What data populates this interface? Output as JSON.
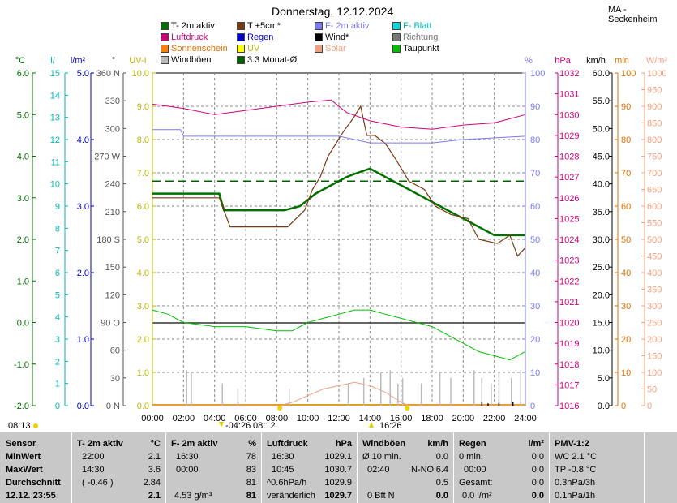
{
  "header": {
    "title": "Donnerstag, 12.12.2024",
    "location": "MA - Seckenheim"
  },
  "legend": [
    {
      "label": "T- 2m aktiv",
      "color": "#007000"
    },
    {
      "label": "T +5cm*",
      "color": "#7a3a10"
    },
    {
      "label": "F- 2m aktiv",
      "color": "#7a7aee"
    },
    {
      "label": "F- Blatt",
      "color": "#00dcdc"
    },
    {
      "label": "Luftdruck",
      "color": "#d0007a"
    },
    {
      "label": "Regen",
      "color": "#0000d0"
    },
    {
      "label": "Wind*",
      "color": "#000000"
    },
    {
      "label": "Richtung",
      "color": "#777777"
    },
    {
      "label": "Sonnenschein",
      "color": "#ff8000"
    },
    {
      "label": "UV",
      "color": "#ffff00"
    },
    {
      "label": "Solar",
      "color": "#f0a080"
    },
    {
      "label": "Taupunkt",
      "color": "#00c000"
    },
    {
      "label": "Windböen",
      "color": "#bbbbbb"
    },
    {
      "label": "3.3 Monat-Ø",
      "color": "#006000"
    }
  ],
  "axes": {
    "titles": {
      "t": "°C",
      "rain_rate": "l/",
      "rain": "l/m²",
      "dir": "°",
      "uv": "UV-I",
      "hum": "%",
      "press": "hPa",
      "wind": "km/h",
      "sun": "min",
      "solar": "W/m²"
    },
    "t": [
      "6.0",
      "5.0",
      "4.0",
      "3.0",
      "2.0",
      "1.0",
      "0.0",
      "-1.0",
      "-2.0"
    ],
    "rain_rate": [
      "15",
      "14",
      "13",
      "12",
      "11",
      "10",
      "9",
      "8",
      "7",
      "6",
      "5",
      "4",
      "3",
      "2",
      "1",
      "0"
    ],
    "rain": [
      "5.0",
      "4.0",
      "3.0",
      "2.0",
      "1.0",
      "0.0"
    ],
    "dir": [
      "360 N",
      "330",
      "300",
      "270 W",
      "240",
      "210",
      "180 S",
      "150",
      "120",
      "90 O",
      "60",
      "30",
      "0 N"
    ],
    "uv": [
      "10.0",
      "9.0",
      "8.0",
      "7.0",
      "6.0",
      "5.0",
      "4.0",
      "3.0",
      "2.0",
      "1.0",
      "0.0"
    ],
    "hum": [
      "100",
      "90",
      "80",
      "70",
      "60",
      "50",
      "40",
      "30",
      "20",
      "10",
      "0"
    ],
    "press": [
      "1032",
      "1031",
      "1030",
      "1029",
      "1028",
      "1027",
      "1026",
      "1025",
      "1024",
      "1023",
      "1022",
      "1021",
      "1020",
      "1019",
      "1018",
      "1017",
      "1016"
    ],
    "wind": [
      "60.0",
      "55.0",
      "50.0",
      "45.0",
      "40.0",
      "35.0",
      "30.0",
      "25.0",
      "20.0",
      "15.0",
      "10.0",
      "5.0",
      "0.0"
    ],
    "sun": [
      "100",
      "90",
      "80",
      "70",
      "60",
      "50",
      "40",
      "30",
      "20",
      "10",
      "0"
    ],
    "solar": [
      "1000",
      "950",
      "900",
      "850",
      "800",
      "750",
      "700",
      "650",
      "600",
      "550",
      "500",
      "450",
      "400",
      "350",
      "300",
      "250",
      "200",
      "150",
      "100",
      "50",
      "0"
    ],
    "time": [
      "00:00",
      "02:00",
      "04:00",
      "06:00",
      "08:00",
      "10:00",
      "12:00",
      "14:00",
      "16:00",
      "18:00",
      "20:00",
      "22:00",
      "24:00"
    ]
  },
  "below_axis": {
    "sunrise": "08:13",
    "moonset": "-04:26",
    "moonrise": "08:12",
    "sunset": "16:26"
  },
  "chart_data": {
    "type": "line",
    "x_unit": "hour",
    "xlim": [
      0,
      24
    ],
    "series": [
      {
        "name": "T- 2m aktiv",
        "axis": "°C",
        "ylim": [
          -2,
          6
        ],
        "color": "#007000",
        "x": [
          0,
          4.3,
          4.6,
          6,
          8.5,
          9.5,
          10.5,
          11.5,
          12.5,
          13.2,
          14,
          14.5,
          15.5,
          16.5,
          17.5,
          18.5,
          19.5,
          20.5,
          21.5,
          22,
          23,
          24
        ],
        "y": [
          3.1,
          3.1,
          2.7,
          2.7,
          2.7,
          2.8,
          3.1,
          3.3,
          3.5,
          3.6,
          3.7,
          3.6,
          3.4,
          3.2,
          3.0,
          2.8,
          2.6,
          2.4,
          2.2,
          2.1,
          2.1,
          2.1
        ]
      },
      {
        "name": "T +5cm*",
        "axis": "°C",
        "ylim": [
          -2,
          6
        ],
        "color": "#7a3a10",
        "x": [
          0,
          4.3,
          5,
          7,
          8.7,
          9.8,
          10.3,
          10.8,
          11.3,
          12.3,
          12.9,
          13.4,
          13.8,
          14.3,
          15,
          15.7,
          16.5,
          17.5,
          18.2,
          19.2,
          20.3,
          21,
          22.2,
          23,
          23.5,
          24
        ],
        "y": [
          3.0,
          3.0,
          2.3,
          2.3,
          2.3,
          2.7,
          3.2,
          3.5,
          4.0,
          4.6,
          4.9,
          5.2,
          4.5,
          4.5,
          4.3,
          3.9,
          3.4,
          3.2,
          2.8,
          2.6,
          2.5,
          2.0,
          1.9,
          2.1,
          1.6,
          1.8
        ]
      },
      {
        "name": "Luftdruck",
        "axis": "hPa",
        "ylim": [
          1016,
          1032
        ],
        "color": "#d0007a",
        "x": [
          0,
          2,
          4,
          6,
          8,
          10,
          11.5,
          12.5,
          14,
          16,
          18,
          20,
          22,
          23,
          24
        ],
        "y": [
          1030.5,
          1030.3,
          1030.0,
          1030.2,
          1030.4,
          1030.6,
          1030.7,
          1030.1,
          1029.7,
          1029.4,
          1029.3,
          1029.5,
          1029.6,
          1029.8,
          1030.0
        ]
      },
      {
        "name": "F- 2m aktiv",
        "axis": "%",
        "ylim": [
          0,
          100
        ],
        "color": "#7a7aee",
        "x": [
          0,
          1.8,
          2,
          8,
          12,
          14,
          16,
          18,
          20,
          24
        ],
        "y": [
          83,
          83,
          81,
          81,
          81,
          79,
          79,
          79,
          80,
          81
        ]
      },
      {
        "name": "Taupunkt",
        "axis": "°C",
        "ylim": [
          -2,
          6
        ],
        "color": "#00c000",
        "x": [
          0,
          1,
          2,
          4,
          6,
          8,
          9,
          10,
          11,
          12,
          13,
          14,
          15,
          16,
          17,
          18,
          19,
          20,
          21,
          22,
          23,
          24
        ],
        "y": [
          0.3,
          0.2,
          0.0,
          -0.1,
          -0.1,
          -0.2,
          -0.2,
          0.0,
          0.1,
          0.2,
          0.3,
          0.3,
          0.2,
          0.1,
          0.0,
          -0.1,
          -0.3,
          -0.5,
          -0.7,
          -0.8,
          -0.9,
          -0.7
        ]
      },
      {
        "name": "3.3 Monat-Ø",
        "axis": "°C",
        "ylim": [
          -2,
          6
        ],
        "color": "#006000",
        "x": [
          0,
          24
        ],
        "y": [
          3.4,
          3.4
        ]
      },
      {
        "name": "Solar",
        "axis": "W/m²",
        "ylim": [
          0,
          1000
        ],
        "color": "#f0a080",
        "x": [
          0,
          8.2,
          9,
          10,
          11,
          12,
          13,
          14,
          15,
          16,
          16.5,
          24
        ],
        "y": [
          0,
          0,
          10,
          30,
          50,
          60,
          70,
          60,
          40,
          10,
          0,
          0
        ]
      },
      {
        "name": "Windböen",
        "axis": "km/h",
        "ylim": [
          0,
          60
        ],
        "color": "#bbbbbb",
        "style": "spikes",
        "x": [
          2.2,
          2.5,
          4.5,
          5.5,
          8.8,
          12.6,
          13.6,
          14.7,
          15.3,
          15.8,
          16.1,
          17.3,
          18.5,
          19.2,
          20.7,
          21.2,
          21.8,
          22.3,
          23.1,
          23.7
        ],
        "y": [
          6.4,
          6.0,
          4.0,
          3.0,
          3.0,
          4.0,
          5.0,
          6.0,
          6.4,
          4.0,
          5.0,
          4.0,
          6.0,
          5.0,
          6.4,
          5.0,
          4.0,
          6.0,
          5.0,
          6.4
        ]
      },
      {
        "name": "Wind*",
        "axis": "km/h",
        "ylim": [
          0,
          60
        ],
        "color": "#000000",
        "style": "spikes",
        "x": [
          21.2,
          21.6,
          22.3,
          23.2
        ],
        "y": [
          0.6,
          0.4,
          0.5,
          0.6
        ]
      }
    ]
  },
  "table": {
    "sensor": {
      "head": "Sensor",
      "rows": [
        "MinWert",
        "MaxWert",
        "Durchschnitt"
      ],
      "date": "12.12. 23:55"
    },
    "temp": {
      "head": "T- 2m aktiv",
      "unit": "°C",
      "min_time": "22:00",
      "min": "2.1",
      "max_time": "14:30",
      "max": "3.6",
      "avg_note": "( -0.46 )",
      "avg": "2.84",
      "current": "2.1"
    },
    "hum": {
      "head": "F- 2m aktiv",
      "unit": "%",
      "min_time": "16:30",
      "min": "78",
      "max_time": "00:00",
      "max": "83",
      "avg": "81",
      "abs": "4.53 g/m³",
      "current": "81"
    },
    "press": {
      "head": "Luftdruck",
      "unit": "hPa",
      "min_time": "16:30",
      "min": "1029.1",
      "max_time": "10:45",
      "max": "1030.7",
      "trend_label": "^0.6hPa/h",
      "trend": "1029.9",
      "tendency": "veränderlich",
      "current": "1029.7"
    },
    "gust": {
      "head": "Windböen",
      "unit": "km/h",
      "avg_label": "Ø 10 min.",
      "avg": "0.0",
      "max_time": "02:40",
      "max_dir": "N-NO",
      "max": "6.4",
      "mean": "0.5",
      "bft": "0 Bft N",
      "current": "0.0"
    },
    "rain": {
      "head": "Regen",
      "unit": "l/m²",
      "dur": "0 min.",
      "dur_val": "0.0",
      "last_time": "00:00",
      "last_val": "0.0",
      "total_label": "Gesamt:",
      "total": "0.0",
      "rate": "0.0 l/m²",
      "current": "0.0"
    },
    "pmv": {
      "head": "PMV-1:2",
      "wc": "WC 2.1 °C",
      "tp": "TP -0.8 °C",
      "r3": "0.3hPa/3h",
      "r1": "0.1hPa/1h"
    }
  }
}
